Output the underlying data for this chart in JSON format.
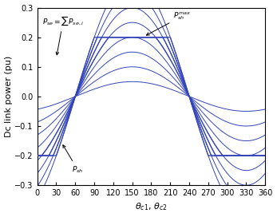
{
  "title": "",
  "xlabel": "$\\theta_{c1},\\, \\theta_{c2}$",
  "ylabel": "Dc link power (pu)",
  "xlim": [
    0,
    360
  ],
  "ylim": [
    -0.3,
    0.3
  ],
  "xticks": [
    0,
    30,
    60,
    90,
    120,
    150,
    180,
    210,
    240,
    270,
    300,
    330,
    360
  ],
  "yticks": [
    -0.3,
    -0.2,
    -0.1,
    0.0,
    0.1,
    0.2,
    0.3
  ],
  "line_color": "#3344bb",
  "psh_max": 0.2,
  "amplitudes_unclipped": [
    0.05,
    0.1,
    0.15,
    0.2
  ],
  "amplitudes_clipped": [
    0.25,
    0.3,
    0.35,
    0.4
  ],
  "figsize": [
    3.47,
    2.72
  ],
  "dpi": 100,
  "phase_shift_deg": 60
}
